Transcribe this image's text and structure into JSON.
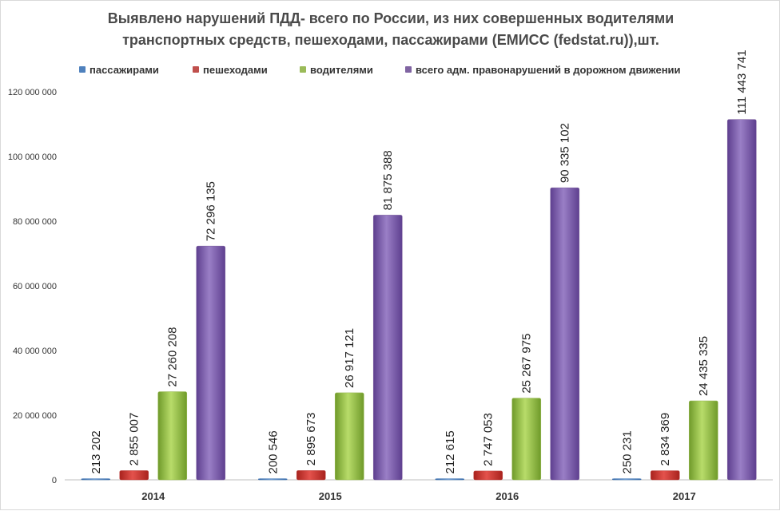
{
  "chart_data": {
    "type": "bar",
    "title_lines": [
      "Выявлено нарушений ПДД- всего по России, из них совершенных водителями",
      "транспортных  средств, пешеходами, пассажирами (ЕМИСС (fedstat.ru)),шт."
    ],
    "categories": [
      "2014",
      "2015",
      "2016",
      "2017"
    ],
    "series": [
      {
        "name": "пассажирами",
        "color": "#4f81bd",
        "values": [
          213202,
          200546,
          212615,
          250231
        ],
        "labels": [
          "213 202",
          "200 546",
          "212 615",
          "250 231"
        ]
      },
      {
        "name": "пешеходами",
        "color": "#c0504d",
        "values": [
          2855007,
          2895673,
          2747053,
          2834369
        ],
        "labels": [
          "2 855 007",
          "2 895 673",
          "2 747 053",
          "2 834 369"
        ]
      },
      {
        "name": "водителями",
        "color": "#9bbb59",
        "values": [
          27260208,
          26917121,
          25267975,
          24435335
        ],
        "labels": [
          "27 260 208",
          "26 917 121",
          "25 267 975",
          "24 435 335"
        ]
      },
      {
        "name": "всего адм. правонарушений в дорожном движении",
        "color": "#8064a2",
        "values": [
          72296135,
          81875388,
          90335102,
          111443741
        ],
        "labels": [
          "72 296 135",
          "81 875 388",
          "90 335 102",
          "111 443 741"
        ]
      }
    ],
    "ylim": [
      0,
      120000000
    ],
    "y_ticks": [
      0,
      20000000,
      40000000,
      60000000,
      80000000,
      100000000,
      120000000
    ],
    "y_tick_labels": [
      "0",
      "20 000 000",
      "40 000 000",
      "60 000 000",
      "80 000 000",
      "100 000 000",
      "120 000 000"
    ],
    "grid": false,
    "legend_position": "top"
  }
}
